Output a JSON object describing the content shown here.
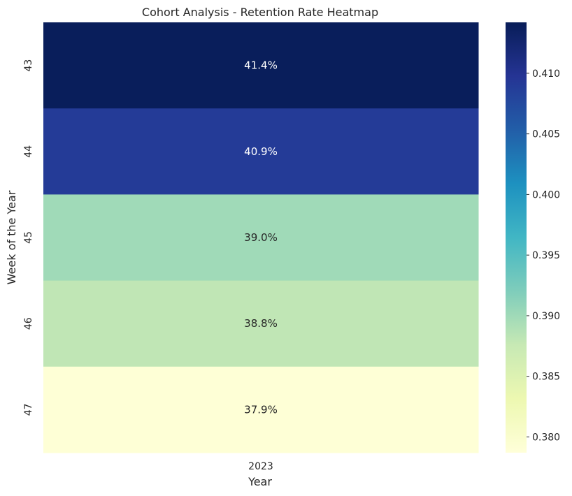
{
  "chart_data": {
    "type": "heatmap",
    "title": "Cohort Analysis - Retention Rate Heatmap",
    "xlabel": "Year",
    "ylabel": "Week of the Year",
    "x_categories": [
      "2023"
    ],
    "y_categories": [
      "43",
      "44",
      "45",
      "46",
      "47"
    ],
    "values": [
      [
        0.414
      ],
      [
        0.409
      ],
      [
        0.39
      ],
      [
        0.388
      ],
      [
        0.379
      ]
    ],
    "annotations": [
      [
        "41.4%"
      ],
      [
        "40.9%"
      ],
      [
        "39.0%"
      ],
      [
        "38.8%"
      ],
      [
        "37.9%"
      ]
    ],
    "colormap": "YlGnBu",
    "colorbar": {
      "range": [
        0.3787,
        0.4142
      ],
      "ticks": [
        0.38,
        0.385,
        0.39,
        0.395,
        0.4,
        0.405,
        0.41
      ],
      "tick_labels": [
        "0.380",
        "0.385",
        "0.390",
        "0.395",
        "0.400",
        "0.405",
        "0.410"
      ]
    },
    "grid": false,
    "legend": "colorbar-right"
  },
  "colors": {
    "text_dark": "#262626",
    "text_light": "#ffffff",
    "scale": [
      "#ffffd9",
      "#edf8b1",
      "#c7e9b4",
      "#7fcdbb",
      "#41b6c4",
      "#1d91c0",
      "#225ea8",
      "#253494",
      "#081d58"
    ]
  }
}
